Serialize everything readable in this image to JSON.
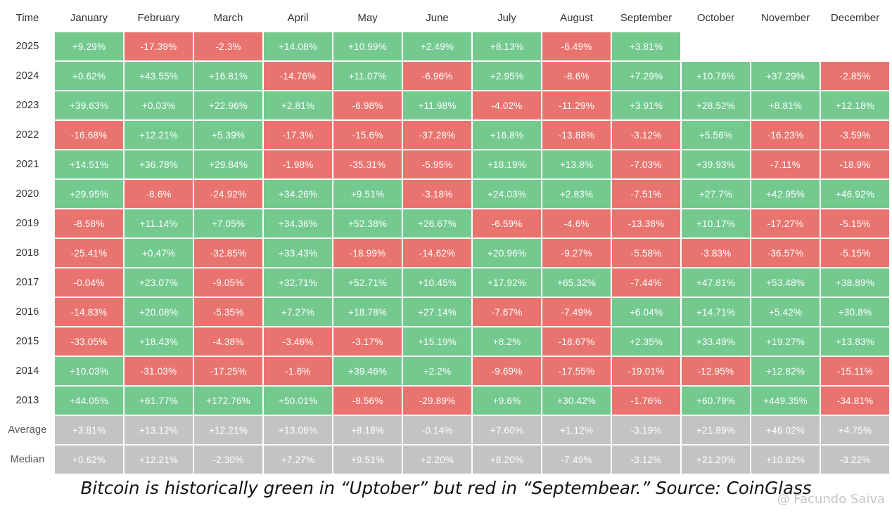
{
  "chart_data": {
    "type": "heatmap",
    "corner_label": "Time",
    "columns": [
      "January",
      "February",
      "March",
      "April",
      "May",
      "June",
      "July",
      "August",
      "September",
      "October",
      "November",
      "December"
    ],
    "rows": [
      {
        "label": "2025",
        "values": [
          "+9.29%",
          "-17.39%",
          "-2.3%",
          "+14.08%",
          "+10.99%",
          "+2.49%",
          "+8.13%",
          "-6.49%",
          "+3.81%",
          "",
          "",
          ""
        ]
      },
      {
        "label": "2024",
        "values": [
          "+0.62%",
          "+43.55%",
          "+16.81%",
          "-14.76%",
          "+11.07%",
          "-6.96%",
          "+2.95%",
          "-8.6%",
          "+7.29%",
          "+10.76%",
          "+37.29%",
          "-2.85%"
        ]
      },
      {
        "label": "2023",
        "values": [
          "+39.63%",
          "+0.03%",
          "+22.96%",
          "+2.81%",
          "-6.98%",
          "+11.98%",
          "-4.02%",
          "-11.29%",
          "+3.91%",
          "+28.52%",
          "+8.81%",
          "+12.18%"
        ]
      },
      {
        "label": "2022",
        "values": [
          "-16.68%",
          "+12.21%",
          "+5.39%",
          "-17.3%",
          "-15.6%",
          "-37.28%",
          "+16.8%",
          "-13.88%",
          "-3.12%",
          "+5.56%",
          "-16.23%",
          "-3.59%"
        ]
      },
      {
        "label": "2021",
        "values": [
          "+14.51%",
          "+36.78%",
          "+29.84%",
          "-1.98%",
          "-35.31%",
          "-5.95%",
          "+18.19%",
          "+13.8%",
          "-7.03%",
          "+39.93%",
          "-7.11%",
          "-18.9%"
        ]
      },
      {
        "label": "2020",
        "values": [
          "+29.95%",
          "-8.6%",
          "-24.92%",
          "+34.26%",
          "+9.51%",
          "-3.18%",
          "+24.03%",
          "+2.83%",
          "-7.51%",
          "+27.7%",
          "+42.95%",
          "+46.92%"
        ]
      },
      {
        "label": "2019",
        "values": [
          "-8.58%",
          "+11.14%",
          "+7.05%",
          "+34.36%",
          "+52.38%",
          "+26.67%",
          "-6.59%",
          "-4.6%",
          "-13.38%",
          "+10.17%",
          "-17.27%",
          "-5.15%"
        ]
      },
      {
        "label": "2018",
        "values": [
          "-25.41%",
          "+0.47%",
          "-32.85%",
          "+33.43%",
          "-18.99%",
          "-14.62%",
          "+20.96%",
          "-9.27%",
          "-5.58%",
          "-3.83%",
          "-36.57%",
          "-5.15%"
        ]
      },
      {
        "label": "2017",
        "values": [
          "-0.04%",
          "+23.07%",
          "-9.05%",
          "+32.71%",
          "+52.71%",
          "+10.45%",
          "+17.92%",
          "+65.32%",
          "-7.44%",
          "+47.81%",
          "+53.48%",
          "+38.89%"
        ]
      },
      {
        "label": "2016",
        "values": [
          "-14.83%",
          "+20.08%",
          "-5.35%",
          "+7.27%",
          "+18.78%",
          "+27.14%",
          "-7.67%",
          "-7.49%",
          "+6.04%",
          "+14.71%",
          "+5.42%",
          "+30.8%"
        ]
      },
      {
        "label": "2015",
        "values": [
          "-33.05%",
          "+18.43%",
          "-4.38%",
          "-3.46%",
          "-3.17%",
          "+15.19%",
          "+8.2%",
          "-18.67%",
          "+2.35%",
          "+33.49%",
          "+19.27%",
          "+13.83%"
        ]
      },
      {
        "label": "2014",
        "values": [
          "+10.03%",
          "-31.03%",
          "-17.25%",
          "-1.6%",
          "+39.46%",
          "+2.2%",
          "-9.69%",
          "-17.55%",
          "-19.01%",
          "-12.95%",
          "+12.82%",
          "-15.11%"
        ]
      },
      {
        "label": "2013",
        "values": [
          "+44.05%",
          "+61.77%",
          "+172.76%",
          "+50.01%",
          "-8.56%",
          "-29.89%",
          "+9.6%",
          "+30.42%",
          "-1.76%",
          "+60.79%",
          "+449.35%",
          "-34.81%"
        ]
      }
    ],
    "summary_rows": [
      {
        "label": "Average",
        "values": [
          "+3.81%",
          "+13.12%",
          "+12.21%",
          "+13.06%",
          "+8.18%",
          "-0.14%",
          "+7.60%",
          "+1.12%",
          "-3.19%",
          "+21.89%",
          "+46.02%",
          "+4.75%"
        ]
      },
      {
        "label": "Median",
        "values": [
          "+0.62%",
          "+12.21%",
          "-2.30%",
          "+7.27%",
          "+9.51%",
          "+2.20%",
          "+8.20%",
          "-7.49%",
          "-3.12%",
          "+21.20%",
          "+10.82%",
          "-3.22%"
        ]
      }
    ],
    "colors": {
      "positive": "#74c98f",
      "negative": "#e9746f",
      "summary": "#c3c3c3"
    }
  },
  "caption": "Bitcoin is historically green in “Uptober” but red in “Septembear.” Source: CoinGlass",
  "watermark": "@ Facundo Saiva"
}
